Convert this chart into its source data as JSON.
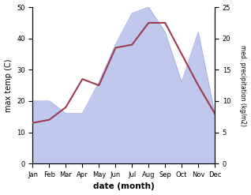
{
  "months": [
    "Jan",
    "Feb",
    "Mar",
    "Apr",
    "May",
    "Jun",
    "Jul",
    "Aug",
    "Sep",
    "Oct",
    "Nov",
    "Dec"
  ],
  "month_indices": [
    0,
    1,
    2,
    3,
    4,
    5,
    6,
    7,
    8,
    9,
    10,
    11
  ],
  "max_temp": [
    13,
    14,
    18,
    27,
    25,
    37,
    38,
    45,
    45,
    35,
    25,
    16
  ],
  "precipitation": [
    10,
    10,
    8,
    8,
    13,
    19,
    24,
    25,
    21,
    13,
    21,
    8
  ],
  "temp_color": "#9e3a4e",
  "precip_fill_color": "#c0c8ee",
  "precip_line_color": "#aab4e8",
  "left_ylabel": "max temp (C)",
  "right_ylabel": "med. precipitation (kg/m2)",
  "xlabel": "date (month)",
  "ylim_left": [
    0,
    50
  ],
  "ylim_right": [
    0,
    25
  ],
  "yticks_left": [
    0,
    10,
    20,
    30,
    40,
    50
  ],
  "yticks_right": [
    0,
    5,
    10,
    15,
    20,
    25
  ],
  "background_color": "#ffffff"
}
